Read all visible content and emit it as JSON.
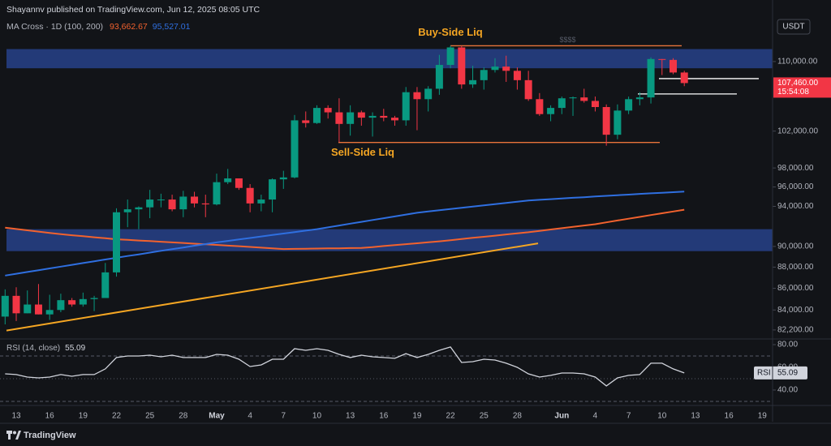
{
  "header": {
    "publisher": "Shayannv published on TradingView.com, Jun 12, 2025 08:05 UTC",
    "indicator": "MA Cross · 1D (100, 200)",
    "currency": "USDT"
  },
  "footer": {
    "brand": "TradingView"
  },
  "chart_data": {
    "type": "candlestick",
    "log_scale": true,
    "grid": false,
    "up_color": "#089981",
    "down_color": "#f23645",
    "ylim": [
      81400,
      117600
    ],
    "yticks": [
      {
        "value": 110000,
        "label": "110,000.00"
      },
      {
        "value": 102000,
        "label": "102,000.00"
      },
      {
        "value": 98000,
        "label": "98,000.00"
      },
      {
        "value": 96000,
        "label": "96,000.00"
      },
      {
        "value": 94000,
        "label": "94,000.00"
      },
      {
        "value": 90000,
        "label": "90,000.00"
      },
      {
        "value": 88000,
        "label": "88,000.00"
      },
      {
        "value": 86000,
        "label": "86,000.00"
      },
      {
        "value": 84000,
        "label": "84,000.00"
      },
      {
        "value": 82200,
        "label": "82,200.00"
      }
    ],
    "categories": [
      null,
      "13",
      null,
      null,
      "16",
      null,
      null,
      "19",
      null,
      null,
      "22",
      null,
      null,
      "25",
      null,
      null,
      "28",
      null,
      null,
      "May",
      null,
      null,
      "4",
      null,
      null,
      "7",
      null,
      null,
      "10",
      null,
      null,
      "13",
      null,
      null,
      "16",
      null,
      null,
      "19",
      null,
      null,
      "22",
      null,
      null,
      "25",
      null,
      null,
      "28",
      null,
      null,
      null,
      "Jun",
      null,
      null,
      "4",
      null,
      null,
      "7",
      null,
      null,
      "10",
      null,
      null,
      "13",
      null,
      null,
      "16",
      null,
      null,
      "19"
    ],
    "open": [
      83400,
      85300,
      83700,
      84500,
      83600,
      84000,
      84900,
      84500,
      85000,
      85100,
      87500,
      93400,
      93700,
      93900,
      94700,
      94700,
      93700,
      95000,
      94300,
      94200,
      96500,
      96900,
      95900,
      94300,
      94700,
      96800,
      97000,
      103200,
      102900,
      104600,
      104100,
      102800,
      104100,
      103500,
      103700,
      103500,
      103200,
      106400,
      105600,
      106800,
      109600,
      111700,
      107300,
      107800,
      109000,
      109400,
      108900,
      107800,
      105600,
      103900,
      104600,
      105700,
      105800,
      105400,
      104700,
      101600,
      104300,
      105600,
      105800,
      110300,
      110200,
      108700,
      null,
      null,
      null,
      null,
      null,
      null,
      null
    ],
    "high": [
      85900,
      86100,
      85800,
      86400,
      85400,
      85500,
      85100,
      85600,
      85300,
      88400,
      93800,
      94700,
      94000,
      95700,
      95300,
      95200,
      95600,
      95500,
      95200,
      97400,
      97900,
      96900,
      96300,
      95200,
      96900,
      97700,
      103800,
      104200,
      104900,
      104900,
      105700,
      104900,
      104300,
      104100,
      104500,
      103700,
      107000,
      107000,
      107100,
      110800,
      111900,
      111900,
      109500,
      109300,
      110400,
      110700,
      109300,
      108900,
      106300,
      104900,
      105900,
      105900,
      106800,
      105900,
      105000,
      105000,
      105900,
      106400,
      110500,
      110300,
      110400,
      108900,
      null,
      null,
      null,
      null,
      null,
      null,
      null
    ],
    "low": [
      82700,
      83000,
      83700,
      83600,
      83100,
      83800,
      84300,
      84300,
      83900,
      85100,
      87100,
      91900,
      91700,
      92800,
      93900,
      93500,
      92900,
      93900,
      92900,
      94100,
      96300,
      95700,
      93400,
      93500,
      93400,
      95800,
      96900,
      102400,
      102800,
      103400,
      100800,
      101500,
      102600,
      101400,
      103100,
      102600,
      102600,
      102100,
      104200,
      106100,
      109200,
      106800,
      106900,
      106700,
      108700,
      107600,
      106700,
      105400,
      103700,
      103100,
      103900,
      103700,
      105200,
      104200,
      100400,
      101100,
      103900,
      104900,
      105100,
      108400,
      108500,
      107100,
      null,
      null,
      null,
      null,
      null,
      null,
      null
    ],
    "close": [
      85300,
      83700,
      84500,
      83600,
      84000,
      84900,
      84500,
      85000,
      85100,
      87500,
      93400,
      93700,
      93900,
      94700,
      94700,
      93700,
      95000,
      94300,
      94200,
      96500,
      96900,
      95900,
      94300,
      94700,
      96800,
      97000,
      103200,
      102900,
      104600,
      104100,
      102800,
      104100,
      103500,
      103700,
      103500,
      103200,
      106400,
      105600,
      106800,
      109600,
      111700,
      107300,
      107800,
      109000,
      109400,
      108900,
      107800,
      105600,
      103900,
      104600,
      105700,
      105800,
      105400,
      104700,
      101600,
      104300,
      105600,
      105800,
      110300,
      110200,
      108700,
      107460,
      null,
      null,
      null,
      null,
      null,
      null,
      null
    ],
    "last_price_label": "107,460.00",
    "countdown": "15:54:08",
    "moving_averages": [
      {
        "color": "#f2622e",
        "last_value_label": "93,662.67",
        "values": [
          91850,
          91720,
          91590,
          91460,
          91330,
          91200,
          91100,
          91000,
          90900,
          90800,
          90700,
          90640,
          90580,
          90520,
          90460,
          90400,
          90340,
          90270,
          90210,
          90150,
          90080,
          90020,
          89950,
          89880,
          89820,
          89750,
          89760,
          89780,
          89790,
          89810,
          89820,
          89840,
          89850,
          89940,
          90040,
          90130,
          90220,
          90310,
          90410,
          90500,
          90610,
          90730,
          90840,
          90950,
          91060,
          91180,
          91290,
          91400,
          91530,
          91670,
          91800,
          91930,
          92070,
          92200,
          92380,
          92570,
          92750,
          92930,
          93120,
          93300,
          93480,
          93662.67,
          null,
          null,
          null,
          null,
          null,
          null,
          null
        ]
      },
      {
        "color": "#2f6fe0",
        "last_value_label": "95,527.01",
        "values": [
          87200,
          87370,
          87540,
          87710,
          87880,
          88050,
          88220,
          88390,
          88560,
          88730,
          88900,
          89070,
          89230,
          89400,
          89570,
          89730,
          89900,
          90070,
          90230,
          90400,
          90540,
          90690,
          90830,
          90980,
          91120,
          91270,
          91410,
          91560,
          91700,
          91880,
          92070,
          92250,
          92430,
          92620,
          92800,
          92980,
          93170,
          93350,
          93480,
          93600,
          93730,
          93850,
          93980,
          94100,
          94230,
          94350,
          94480,
          94600,
          94670,
          94740,
          94810,
          94880,
          94940,
          95010,
          95080,
          95150,
          95210,
          95280,
          95340,
          95400,
          95460,
          95527.01,
          null,
          null,
          null,
          null,
          null,
          null,
          null
        ]
      }
    ],
    "zones": [
      {
        "color": "#27418a",
        "range": [
          109200,
          111500
        ]
      },
      {
        "color": "#27418a",
        "range": [
          89540,
          91700
        ]
      }
    ],
    "levels": [
      {
        "label": "Buy-Side Liq",
        "tag": "$$$$",
        "value": 111900,
        "color": "#e8743b",
        "label_color": "#f5a623"
      },
      {
        "label": "Sell-Side Liq",
        "value": 100750,
        "color": "#e8743b",
        "label_color": "#f5a623"
      },
      {
        "value": 107980,
        "color": "#ffffff"
      },
      {
        "value": 106200,
        "color": "#ffffff"
      }
    ],
    "trendline": {
      "color": "#f5a623",
      "values": [
        82150,
        90300
      ]
    },
    "rsi": {
      "type": "line",
      "title": "RSI (14, close)",
      "value_label": "55.09",
      "axis_tag": "RSI",
      "color": "#d1d4dc",
      "ylim": [
        26.4,
        85
      ],
      "yticks": [
        {
          "value": 80,
          "label": "80.00"
        },
        {
          "value": 60,
          "label": "60.00"
        },
        {
          "value": 40,
          "label": "40.00"
        }
      ],
      "bands": [
        70,
        50,
        30
      ],
      "values": [
        54.3,
        53.6,
        51.4,
        50.7,
        51.4,
        53.6,
        52.1,
        53.6,
        53.6,
        58.6,
        68.6,
        70.0,
        70.0,
        70.7,
        69.3,
        70.7,
        68.6,
        68.6,
        68.6,
        71.4,
        70.7,
        67.1,
        60.7,
        62.1,
        67.1,
        67.1,
        76.4,
        75.0,
        76.4,
        75.0,
        71.4,
        68.6,
        70.7,
        69.3,
        68.6,
        67.9,
        72.1,
        68.6,
        71.4,
        75.0,
        77.9,
        64.3,
        65.0,
        67.1,
        66.4,
        63.6,
        60.0,
        54.3,
        51.4,
        52.9,
        55.0,
        55.0,
        54.3,
        51.4,
        43.6,
        50.7,
        52.9,
        53.6,
        63.6,
        63.6,
        58.6,
        55.09,
        null,
        null,
        null,
        null,
        null,
        null,
        null
      ]
    }
  }
}
